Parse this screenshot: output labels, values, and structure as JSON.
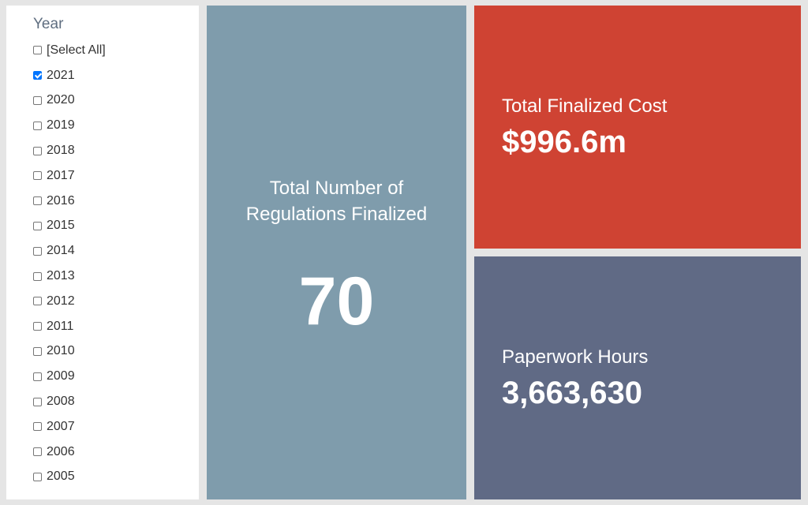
{
  "filter": {
    "title": "Year",
    "items": [
      {
        "label": "[Select All]",
        "checked": false
      },
      {
        "label": "2021",
        "checked": true
      },
      {
        "label": "2020",
        "checked": false
      },
      {
        "label": "2019",
        "checked": false
      },
      {
        "label": "2018",
        "checked": false
      },
      {
        "label": "2017",
        "checked": false
      },
      {
        "label": "2016",
        "checked": false
      },
      {
        "label": "2015",
        "checked": false
      },
      {
        "label": "2014",
        "checked": false
      },
      {
        "label": "2013",
        "checked": false
      },
      {
        "label": "2012",
        "checked": false
      },
      {
        "label": "2011",
        "checked": false
      },
      {
        "label": "2010",
        "checked": false
      },
      {
        "label": "2009",
        "checked": false
      },
      {
        "label": "2008",
        "checked": false
      },
      {
        "label": "2007",
        "checked": false
      },
      {
        "label": "2006",
        "checked": false
      },
      {
        "label": "2005",
        "checked": false
      }
    ]
  },
  "tiles": {
    "regulations": {
      "label": "Total Number of Regulations Finalized",
      "value": "70",
      "color": "#7f9cac"
    },
    "cost": {
      "label": "Total Finalized Cost",
      "value": "$996.6m",
      "color": "#cf4333"
    },
    "hours": {
      "label": "Paperwork Hours",
      "value": "3,663,630",
      "color": "#606a85"
    }
  }
}
